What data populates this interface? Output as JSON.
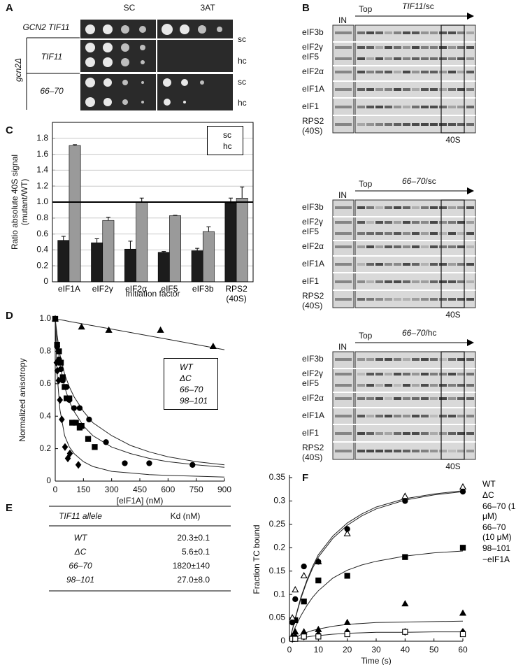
{
  "panel_labels": [
    "A",
    "B",
    "C",
    "D",
    "E",
    "F"
  ],
  "panel_a": {
    "columns": [
      "SC",
      "3AT"
    ],
    "strain_wt": "GCN2 TIF11",
    "strain_mut": "gcn2Δ",
    "alleles": [
      "TIF11",
      "66–70"
    ],
    "copy": [
      "sc",
      "hc"
    ]
  },
  "panel_b": {
    "in_label": "IN",
    "top_label": "Top",
    "fraction_label": "40S",
    "rows": [
      "eIF3b",
      "eIF2γ",
      "eIF5",
      "eIF2α",
      "eIF1A",
      "eIF1",
      "RPS2",
      "(40S)"
    ],
    "blots": [
      {
        "allele": "TIF11",
        "condition": "/sc"
      },
      {
        "allele": "66–70",
        "condition": "/sc"
      },
      {
        "allele": "66–70",
        "condition": "/hc"
      }
    ]
  },
  "chart_data": [
    {
      "type": "bar",
      "ylabel": [
        "Ratio absolute 40S signal",
        "(mutant/WT)"
      ],
      "xlabel": "Initiation factor",
      "categories": [
        "eIF1A",
        "eIF2γ",
        "eIF2α",
        "eIF5",
        "eIF3b",
        "RPS2 (40S)"
      ],
      "series": [
        {
          "name": "sc",
          "color": "#1c1c1c",
          "values": [
            0.52,
            0.49,
            0.41,
            0.37,
            0.39,
            0.99
          ],
          "errors": [
            0.05,
            0.05,
            0.1,
            0.01,
            0.03,
            0.06
          ]
        },
        {
          "name": "hc",
          "color": "#9a9a9a",
          "values": [
            1.71,
            0.77,
            1.0,
            0.83,
            0.63,
            1.05
          ],
          "errors": [
            0.01,
            0.04,
            0.05,
            0.005,
            0.06,
            0.14
          ]
        }
      ],
      "ylim": [
        0,
        2.0
      ],
      "yticks": [
        0,
        0.2,
        0.4,
        0.6,
        0.8,
        {
          "value": 1,
          "label": "1.0"
        },
        1.2,
        1.4,
        1.6,
        1.8
      ],
      "grid": true,
      "reference_line": 1,
      "legend": "upper right"
    },
    {
      "type": "scatter",
      "ylabel": "Normalized anisotropy",
      "xlabel": "[eIF1A] (nM)",
      "xlim": [
        0,
        900
      ],
      "xticks": [
        0,
        150,
        300,
        450,
        600,
        750,
        900
      ],
      "ylim": [
        0,
        1
      ],
      "yticks": [
        0,
        0.2,
        0.4,
        0.6,
        0.8,
        {
          "value": 1,
          "label": "1.0"
        }
      ],
      "grid": false,
      "legend": "center right",
      "series": [
        {
          "name": "WT",
          "marker": "square",
          "filled": true,
          "x": [
            0,
            10,
            20,
            30,
            40,
            50,
            60,
            75,
            90,
            110,
            130,
            140,
            175,
            210
          ],
          "values": [
            1.0,
            0.84,
            0.8,
            0.73,
            0.64,
            0.58,
            0.51,
            0.51,
            0.36,
            0.36,
            0.33,
            0.34,
            0.26,
            0.21
          ]
        },
        {
          "name": "ΔC",
          "marker": "diamond",
          "filled": true,
          "x": [
            7,
            11,
            18,
            25,
            35,
            52,
            67,
            78,
            123
          ],
          "values": [
            0.73,
            0.68,
            0.62,
            0.5,
            0.38,
            0.21,
            0.14,
            0.17,
            0.1
          ]
        },
        {
          "name": "66–70",
          "marker": "triangle",
          "filled": true,
          "x": [
            0,
            140,
            285,
            560,
            840
          ],
          "values": [
            1.0,
            0.95,
            0.93,
            0.93,
            0.83
          ]
        },
        {
          "name": "98–101",
          "marker": "circle",
          "filled": true,
          "x": [
            10,
            20,
            30,
            40,
            60,
            75,
            100,
            130,
            180,
            270,
            370,
            500,
            730
          ],
          "values": [
            0.83,
            0.75,
            0.69,
            0.62,
            0.58,
            0.5,
            0.45,
            0.45,
            0.38,
            0.24,
            0.11,
            0.11,
            0.1
          ]
        }
      ],
      "fits": [
        {
          "x": [
            0,
            10,
            25,
            50,
            75,
            100,
            150,
            200,
            300,
            400,
            500,
            600,
            750,
            900
          ],
          "values": [
            1.0,
            0.86,
            0.72,
            0.58,
            0.49,
            0.43,
            0.34,
            0.28,
            0.21,
            0.17,
            0.14,
            0.12,
            0.1,
            0.085
          ]
        },
        {
          "x": [
            0,
            10,
            25,
            50,
            75,
            100,
            150,
            200,
            300,
            400,
            500,
            600,
            750,
            900
          ],
          "values": [
            1.0,
            0.66,
            0.44,
            0.28,
            0.21,
            0.17,
            0.12,
            0.09,
            0.06,
            0.05,
            0.04,
            0.035,
            0.03,
            0.025
          ]
        },
        {
          "x": [
            0,
            10,
            25,
            50,
            75,
            100,
            150,
            200,
            300,
            400,
            500,
            600,
            750,
            900
          ],
          "values": [
            1.0,
            0.998,
            0.995,
            0.99,
            0.984,
            0.979,
            0.968,
            0.958,
            0.937,
            0.916,
            0.895,
            0.874,
            0.842,
            0.81
          ]
        },
        {
          "x": [
            0,
            10,
            25,
            50,
            75,
            100,
            150,
            200,
            300,
            400,
            500,
            600,
            750,
            900
          ],
          "values": [
            1.0,
            0.9,
            0.78,
            0.66,
            0.58,
            0.52,
            0.43,
            0.36,
            0.28,
            0.22,
            0.18,
            0.15,
            0.12,
            0.1
          ]
        }
      ]
    },
    {
      "type": "scatter",
      "ylabel": "Fraction TC bound",
      "xlabel": "Time (s)",
      "xlim": [
        0,
        60
      ],
      "xticks": [
        0,
        10,
        20,
        30,
        40,
        50,
        60
      ],
      "ylim": [
        0,
        0.35
      ],
      "yticks": [
        0,
        0.05,
        0.1,
        0.15,
        0.2,
        0.25,
        0.3,
        0.35
      ],
      "grid": false,
      "legend": "outside right",
      "series": [
        {
          "name": "WT",
          "marker": "square",
          "filled": true,
          "x": [
            2,
            5,
            10,
            20,
            40,
            60
          ],
          "values": [
            0.045,
            0.085,
            0.13,
            0.14,
            0.18,
            0.2
          ]
        },
        {
          "name": "ΔC",
          "marker": "diamond",
          "filled": true,
          "x": [
            1,
            2,
            5,
            10,
            20,
            40,
            60
          ],
          "values": [
            0.005,
            0.01,
            0.01,
            0.015,
            0.02,
            0.02,
            0.02
          ]
        },
        {
          "name": "66–70 (1 μM)",
          "marker": "triangle",
          "filled": true,
          "x": [
            1,
            2,
            5,
            10,
            20,
            40,
            60
          ],
          "values": [
            0.01,
            0.02,
            0.02,
            0.025,
            0.04,
            0.08,
            0.06
          ]
        },
        {
          "name": "66–70 (10 μM)",
          "marker": "triangle",
          "filled": false,
          "x": [
            1,
            2,
            5,
            10,
            20,
            40,
            60
          ],
          "values": [
            0.05,
            0.11,
            0.14,
            0.17,
            0.23,
            0.31,
            0.33
          ]
        },
        {
          "name": "98–101",
          "marker": "circle",
          "filled": true,
          "x": [
            1,
            2,
            5,
            10,
            20,
            40,
            60
          ],
          "values": [
            0.04,
            0.09,
            0.16,
            0.17,
            0.24,
            0.3,
            0.32
          ]
        },
        {
          "name": "−eIF1A",
          "marker": "square",
          "filled": false,
          "x": [
            1,
            2,
            5,
            10,
            20,
            40,
            60
          ],
          "values": [
            0.005,
            0.005,
            0.01,
            0.01,
            0.015,
            0.02,
            0.015
          ]
        }
      ],
      "fits": [
        {
          "x": [
            0,
            2,
            4,
            6,
            8,
            10,
            15,
            20,
            25,
            30,
            40,
            50,
            60
          ],
          "values": [
            0,
            0.05,
            0.095,
            0.13,
            0.16,
            0.185,
            0.225,
            0.253,
            0.272,
            0.287,
            0.305,
            0.315,
            0.322
          ]
        },
        {
          "x": [
            0,
            2,
            4,
            6,
            8,
            10,
            15,
            20,
            25,
            30,
            40,
            50,
            60
          ],
          "values": [
            0,
            0.048,
            0.092,
            0.127,
            0.156,
            0.18,
            0.22,
            0.248,
            0.268,
            0.283,
            0.302,
            0.313,
            0.32
          ]
        },
        {
          "x": [
            0,
            2,
            4,
            6,
            8,
            10,
            15,
            20,
            25,
            30,
            40,
            50,
            60
          ],
          "values": [
            0,
            0.03,
            0.055,
            0.076,
            0.094,
            0.108,
            0.135,
            0.152,
            0.163,
            0.171,
            0.182,
            0.189,
            0.193
          ]
        },
        {
          "x": [
            0,
            2,
            4,
            6,
            8,
            10,
            15,
            20,
            25,
            30,
            40,
            50,
            60
          ],
          "values": [
            0,
            0.008,
            0.014,
            0.019,
            0.023,
            0.026,
            0.032,
            0.036,
            0.038,
            0.04,
            0.041,
            0.042,
            0.043
          ]
        },
        {
          "x": [
            0,
            2,
            4,
            6,
            8,
            10,
            15,
            20,
            25,
            30,
            40,
            50,
            60
          ],
          "values": [
            0,
            0.004,
            0.007,
            0.009,
            0.011,
            0.012,
            0.015,
            0.017,
            0.018,
            0.019,
            0.019,
            0.02,
            0.02
          ]
        }
      ]
    }
  ],
  "table": {
    "header": [
      "TIF11 allele",
      "Kd (nM)"
    ],
    "rows": [
      [
        "WT",
        "20.3±0.1"
      ],
      [
        "ΔC",
        "5.6±0.1"
      ],
      [
        "66–70",
        "1820±140"
      ],
      [
        "98–101",
        "27.0±8.0"
      ]
    ]
  }
}
